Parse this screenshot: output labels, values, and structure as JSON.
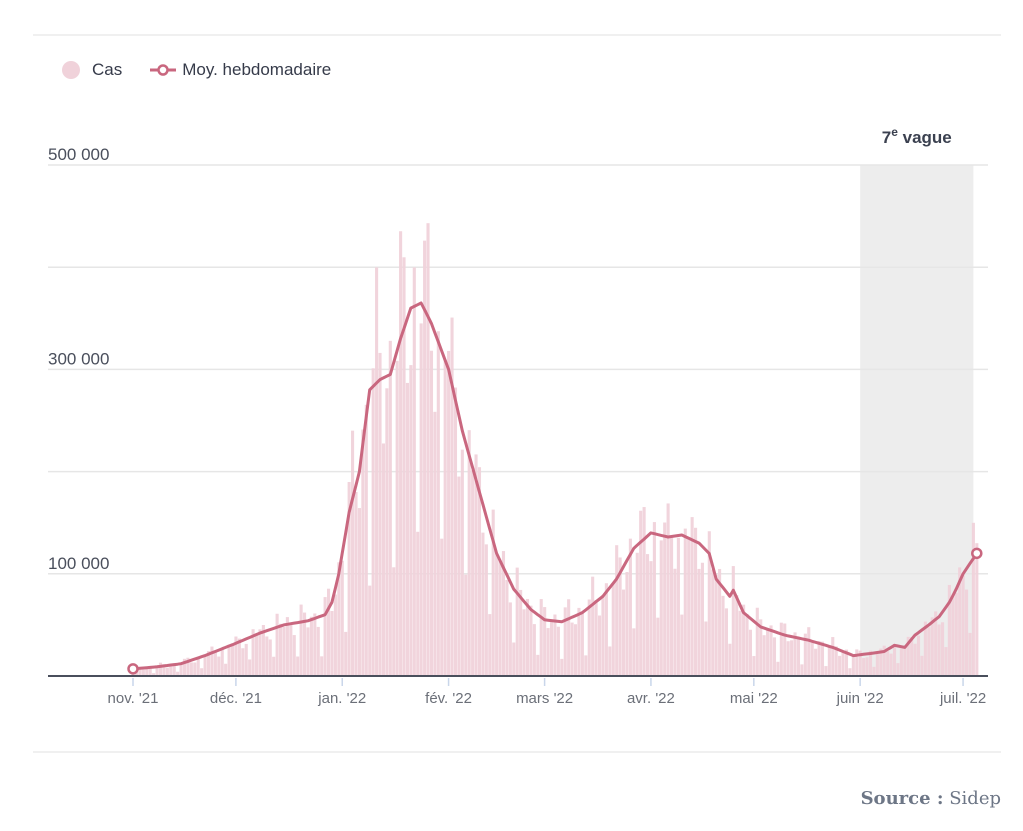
{
  "legend": {
    "cases_label": "Cas",
    "avg_label": "Moy. hebdomadaire"
  },
  "source": {
    "label": "Source :",
    "value": "Sidep"
  },
  "colors": {
    "bar": "#f0d2da",
    "line": "#c9677f",
    "band": "#ededed",
    "grid": "#e6e6e6",
    "axis": "#4a4f5c",
    "tick_text": "#6b6f78"
  },
  "chart_data": {
    "type": "bar",
    "title": "",
    "xlabel": "",
    "ylabel": "",
    "ylim": [
      0,
      500000
    ],
    "x_start": "2021-11-01",
    "x_end": "2022-07-05",
    "yticks": [
      {
        "value": 0,
        "label": ""
      },
      {
        "value": 100000,
        "label": "100 000"
      },
      {
        "value": 200000,
        "label": ""
      },
      {
        "value": 300000,
        "label": "300 000"
      },
      {
        "value": 400000,
        "label": ""
      },
      {
        "value": 500000,
        "label": "500 000"
      }
    ],
    "xticks": [
      {
        "date": "2021-11-01",
        "label": "nov. '21"
      },
      {
        "date": "2021-12-01",
        "label": "déc. '21"
      },
      {
        "date": "2022-01-01",
        "label": "jan. '22"
      },
      {
        "date": "2022-02-01",
        "label": "fév. '22"
      },
      {
        "date": "2022-03-01",
        "label": "mars '22"
      },
      {
        "date": "2022-04-01",
        "label": "avr. '22"
      },
      {
        "date": "2022-05-01",
        "label": "mai '22"
      },
      {
        "date": "2022-06-01",
        "label": "juin '22"
      },
      {
        "date": "2022-07-01",
        "label": "juil. '22"
      }
    ],
    "annotation": {
      "label_main": "7",
      "label_sup": "e",
      "label_rest": " vague",
      "start": "2022-06-01",
      "end": "2022-07-04"
    },
    "series": [
      {
        "name": "Cas",
        "kind": "bar",
        "weekly_pattern": [
          1.05,
          1.15,
          1.1,
          1.05,
          1.0,
          0.95,
          0.35
        ]
      },
      {
        "name": "Moy. hebdomadaire",
        "kind": "line",
        "points": [
          [
            "2021-11-01",
            7000
          ],
          [
            "2021-11-08",
            9000
          ],
          [
            "2021-11-15",
            12000
          ],
          [
            "2021-11-22",
            20000
          ],
          [
            "2021-12-01",
            32000
          ],
          [
            "2021-12-08",
            42000
          ],
          [
            "2021-12-15",
            50000
          ],
          [
            "2021-12-22",
            54000
          ],
          [
            "2021-12-27",
            60000
          ],
          [
            "2021-12-29",
            72000
          ],
          [
            "2021-12-31",
            100000
          ],
          [
            "2022-01-03",
            160000
          ],
          [
            "2022-01-06",
            200000
          ],
          [
            "2022-01-09",
            280000
          ],
          [
            "2022-01-12",
            290000
          ],
          [
            "2022-01-15",
            295000
          ],
          [
            "2022-01-18",
            330000
          ],
          [
            "2022-01-21",
            360000
          ],
          [
            "2022-01-24",
            365000
          ],
          [
            "2022-01-27",
            345000
          ],
          [
            "2022-02-01",
            300000
          ],
          [
            "2022-02-05",
            240000
          ],
          [
            "2022-02-10",
            180000
          ],
          [
            "2022-02-15",
            120000
          ],
          [
            "2022-02-20",
            85000
          ],
          [
            "2022-02-25",
            65000
          ],
          [
            "2022-03-01",
            55000
          ],
          [
            "2022-03-06",
            53000
          ],
          [
            "2022-03-12",
            62000
          ],
          [
            "2022-03-18",
            78000
          ],
          [
            "2022-03-22",
            95000
          ],
          [
            "2022-03-27",
            125000
          ],
          [
            "2022-04-01",
            140000
          ],
          [
            "2022-04-06",
            136000
          ],
          [
            "2022-04-10",
            138000
          ],
          [
            "2022-04-15",
            130000
          ],
          [
            "2022-04-18",
            120000
          ],
          [
            "2022-04-20",
            95000
          ],
          [
            "2022-04-24",
            78000
          ],
          [
            "2022-04-25",
            84000
          ],
          [
            "2022-04-28",
            62000
          ],
          [
            "2022-05-03",
            48000
          ],
          [
            "2022-05-10",
            40000
          ],
          [
            "2022-05-17",
            35000
          ],
          [
            "2022-05-24",
            28000
          ],
          [
            "2022-05-30",
            20000
          ],
          [
            "2022-06-04",
            22000
          ],
          [
            "2022-06-08",
            24000
          ],
          [
            "2022-06-11",
            30000
          ],
          [
            "2022-06-14",
            28000
          ],
          [
            "2022-06-17",
            40000
          ],
          [
            "2022-06-21",
            50000
          ],
          [
            "2022-06-24",
            58000
          ],
          [
            "2022-06-27",
            72000
          ],
          [
            "2022-06-29",
            85000
          ],
          [
            "2022-07-01",
            100000
          ],
          [
            "2022-07-05",
            120000
          ]
        ]
      }
    ]
  }
}
